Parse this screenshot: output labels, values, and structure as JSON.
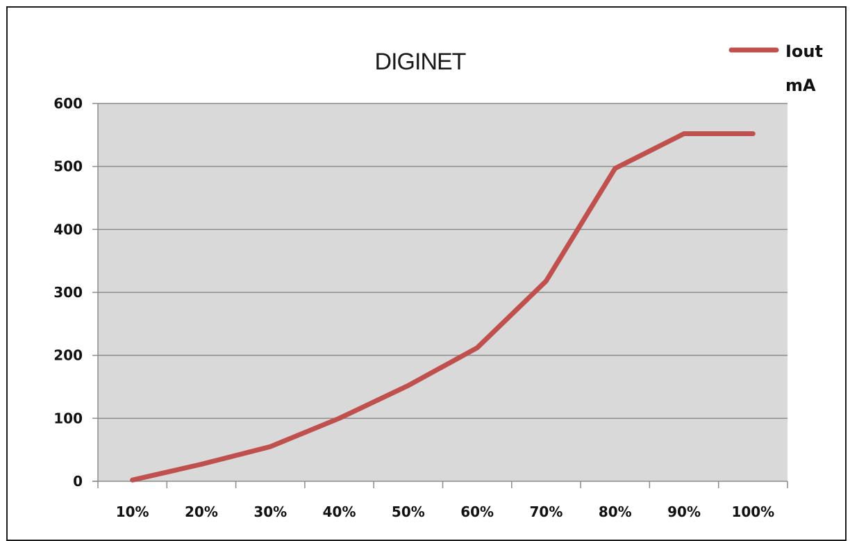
{
  "chart_data": {
    "type": "line",
    "title": "DIGINET",
    "xlabel": "",
    "ylabel": "",
    "categories": [
      "10%",
      "20%",
      "30%",
      "40%",
      "50%",
      "60%",
      "70%",
      "80%",
      "90%",
      "100%"
    ],
    "series": [
      {
        "name": "Iout mA",
        "color": "#c0504d",
        "values": [
          2,
          27,
          55,
          100,
          152,
          212,
          318,
          497,
          552,
          552
        ]
      }
    ],
    "ylim": [
      0,
      600
    ],
    "yticks": [
      "0",
      "100",
      "200",
      "300",
      "400",
      "500",
      "600"
    ],
    "grid": true,
    "legend_position": "top-right",
    "plot_background": "#d9d9d9"
  },
  "legend": {
    "line1": "Iout",
    "line2": "mA"
  }
}
